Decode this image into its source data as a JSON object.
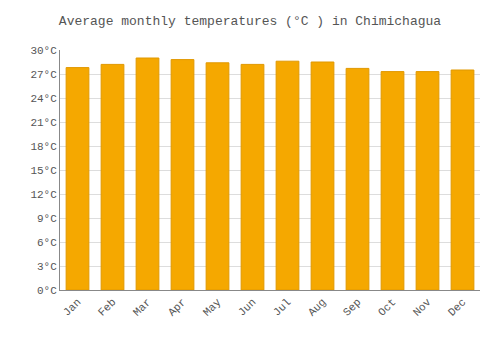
{
  "chart_data": {
    "type": "bar",
    "title": "Average monthly temperatures (°C ) in Chimichagua",
    "categories": [
      "Jan",
      "Feb",
      "Mar",
      "Apr",
      "May",
      "Jun",
      "Jul",
      "Aug",
      "Sep",
      "Oct",
      "Nov",
      "Dec"
    ],
    "values": [
      27.8,
      28.2,
      29.0,
      28.8,
      28.4,
      28.2,
      28.6,
      28.5,
      27.7,
      27.3,
      27.3,
      27.5
    ],
    "color": "#F5A800",
    "ylim": [
      0,
      30
    ],
    "yticks": [
      {
        "value": 0,
        "label": "0°C"
      },
      {
        "value": 3,
        "label": "3°C"
      },
      {
        "value": 6,
        "label": "6°C"
      },
      {
        "value": 9,
        "label": "9°C"
      },
      {
        "value": 12,
        "label": "12°C"
      },
      {
        "value": 15,
        "label": "15°C"
      },
      {
        "value": 18,
        "label": "18°C"
      },
      {
        "value": 21,
        "label": "21°C"
      },
      {
        "value": 24,
        "label": "24°C"
      },
      {
        "value": 27,
        "label": "27°C"
      },
      {
        "value": 30,
        "label": "30°C"
      }
    ],
    "grid": true
  }
}
